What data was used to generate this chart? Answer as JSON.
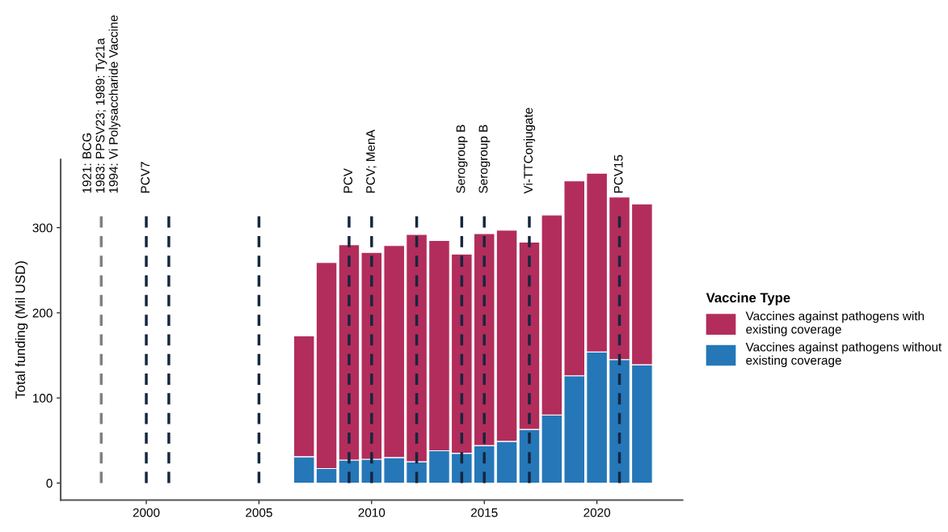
{
  "chart_data": {
    "type": "bar",
    "stacked": true,
    "ylabel": "Total funding (Mil USD)",
    "legend_title": "Vaccine Type",
    "x": [
      2007,
      2008,
      2009,
      2010,
      2011,
      2012,
      2013,
      2014,
      2015,
      2016,
      2017,
      2018,
      2019,
      2020,
      2021,
      2022
    ],
    "series": [
      {
        "name": "Vaccines against pathogens without\nexisting coverage",
        "color": "#2577b8",
        "values": [
          31,
          17,
          27,
          28,
          30,
          25,
          38,
          35,
          44,
          49,
          63,
          80,
          126,
          154,
          145,
          139
        ]
      },
      {
        "name": "Vaccines against pathogens with\nexisting coverage",
        "color": "#b22d5b",
        "values": [
          142,
          242,
          253,
          243,
          249,
          267,
          247,
          234,
          249,
          248,
          220,
          235,
          229,
          210,
          191,
          189
        ]
      }
    ],
    "xlim": [
      1996.2,
      2023.8
    ],
    "xticks": [
      2000,
      2005,
      2010,
      2015,
      2020
    ],
    "ylim": [
      -20,
      380
    ],
    "yticks": [
      0,
      100,
      200,
      300
    ],
    "grid": false,
    "legend": "right",
    "ref_lines": [
      {
        "axis": "x",
        "value": 1998,
        "label": "1921: BCG\n1983: PPSV23; 1989: Ty21a\n1994: Vi Polysaccharide Vaccine",
        "color": "#808080",
        "line_style": "dashed"
      },
      {
        "axis": "x",
        "value": 2000,
        "label": "PCV7",
        "color": "#15263f",
        "line_style": "dashed"
      },
      {
        "axis": "x",
        "value": 2001,
        "color": "#15263f",
        "line_style": "dashed"
      },
      {
        "axis": "x",
        "value": 2005,
        "color": "#15263f",
        "line_style": "dashed"
      },
      {
        "axis": "x",
        "value": 2009,
        "label": "PCV",
        "color": "#15263f",
        "line_style": "dashed"
      },
      {
        "axis": "x",
        "value": 2010,
        "label": "PCV; MenA",
        "color": "#15263f",
        "line_style": "dashed"
      },
      {
        "axis": "x",
        "value": 2012,
        "color": "#15263f",
        "line_style": "dashed"
      },
      {
        "axis": "x",
        "value": 2014,
        "label": "Serogroup B",
        "color": "#15263f",
        "line_style": "dashed"
      },
      {
        "axis": "x",
        "value": 2015,
        "label": "Serogroup B",
        "color": "#15263f",
        "line_style": "dashed"
      },
      {
        "axis": "x",
        "value": 2017,
        "label": "Vi-TTConjugate",
        "color": "#15263f",
        "line_style": "dashed"
      },
      {
        "axis": "x",
        "value": 2021,
        "label": "PCV15",
        "color": "#15263f",
        "line_style": "dashed"
      }
    ]
  }
}
